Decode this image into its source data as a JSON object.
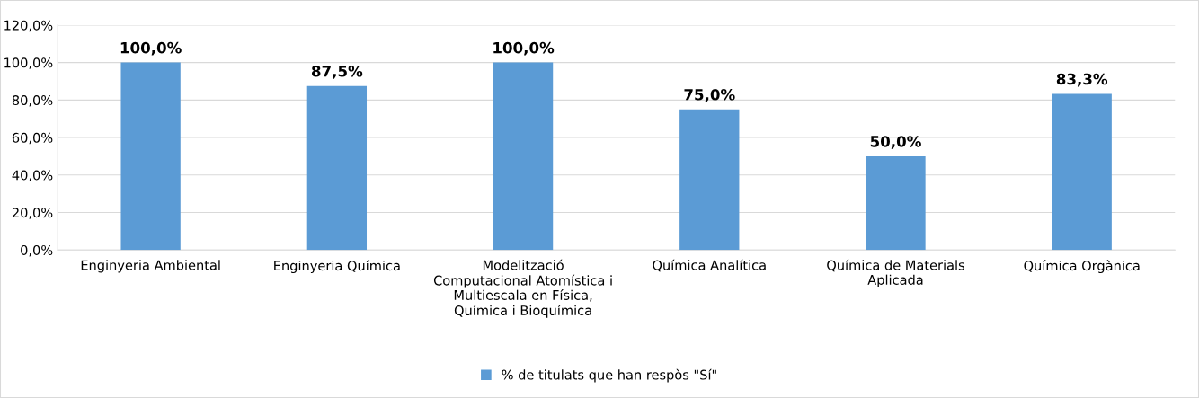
{
  "chart_data": {
    "type": "bar",
    "categories": [
      "Enginyeria Ambiental",
      "Enginyeria Química",
      "Modelització\nComputacional Atomística i\nMultiescala en Física,\nQuímica i Bioquímica",
      "Química Analítica",
      "Química de Materials\nAplicada",
      "Química Orgànica"
    ],
    "series": [
      {
        "name": "% de titulats que han respòs \"Sí\"",
        "color": "#5b9bd5",
        "values": [
          100.0,
          87.5,
          100.0,
          75.0,
          50.0,
          83.3
        ],
        "value_labels": [
          "100,0%",
          "87,5%",
          "100,0%",
          "75,0%",
          "50,0%",
          "83,3%"
        ]
      }
    ],
    "ylim": [
      0,
      120
    ],
    "yticks": [
      {
        "value": 0,
        "label": "0,0%"
      },
      {
        "value": 20,
        "label": "20,0%"
      },
      {
        "value": 40,
        "label": "40,0%"
      },
      {
        "value": 60,
        "label": "60,0%"
      },
      {
        "value": 80,
        "label": "80,0%"
      },
      {
        "value": 100,
        "label": "100,0%"
      },
      {
        "value": 120,
        "label": "120,0%"
      }
    ],
    "grid": "y",
    "legend": "bottom"
  }
}
